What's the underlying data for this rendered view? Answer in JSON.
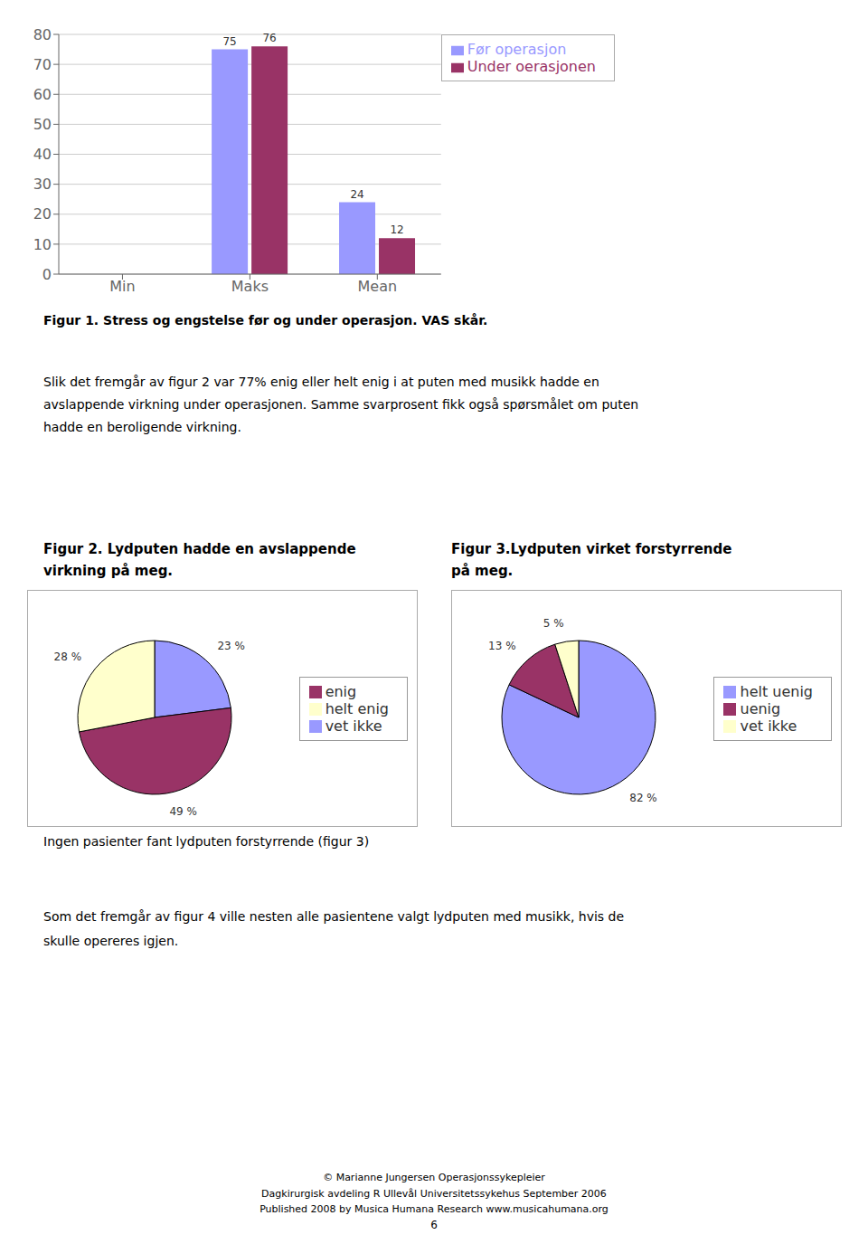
{
  "chart_data": [
    {
      "type": "bar",
      "title": "Figur 1. Stress og engstelse før og under operasjon. VAS skår.",
      "categories": [
        "Min",
        "Maks",
        "Mean"
      ],
      "series": [
        {
          "name": "Før operasjon",
          "color": "#9999ff",
          "values": [
            0,
            75,
            24
          ]
        },
        {
          "name": "Under oerasjonen",
          "color": "#993366",
          "values": [
            0,
            76,
            12
          ]
        }
      ],
      "ylim": [
        0,
        80
      ],
      "yticks": [
        0,
        10,
        20,
        30,
        40,
        50,
        60,
        70,
        80
      ],
      "grid": true,
      "data_labels": true,
      "legend": "upper right"
    },
    {
      "type": "pie",
      "title": "Figur 2. Lydputen hadde en avslappende\nvirkning på meg.",
      "categories": [
        "vet ikke",
        "enig",
        "helt enig"
      ],
      "values": [
        23,
        49,
        28
      ],
      "value_labels": [
        "23 %",
        "49 %",
        "28 %"
      ],
      "colors": [
        "#9999ff",
        "#993366",
        "#ffffcc"
      ],
      "data_labels": true,
      "legend": "right"
    },
    {
      "type": "pie",
      "title": "Figur 3.Lydputen virket forstyrrende\npå meg.",
      "categories": [
        "helt uenig",
        "uenig",
        "vet ikke"
      ],
      "values": [
        82,
        13,
        5
      ],
      "value_labels": [
        "82 %",
        "13 %",
        "5 %"
      ],
      "colors": [
        "#9999ff",
        "#993366",
        "#ffffcc"
      ],
      "data_labels": true,
      "legend": "right"
    }
  ],
  "annotations": [
    "Slik det fremgår av figur 2 var 77% enig eller helt enig i at puten med musikk hadde en\navslappende virkning under operasjonen. Samme svarprosent fikk også spørsmålet om puten\nhadde en beroligende virkning.",
    "Ingen pasienter fant lydputen forstyrrende (figur 3)",
    "Som det fremgår av figur 4 ville nesten alle pasientene valgt lydputen med musikk, hvis de\nskulle opereres igjen.",
    "© Marianne Jungersen  Operasjonssykepleier\nDagkirurgisk avdeling R Ullevål Universitetssykehus September 2006\nPublished 2008 by Musica Humana Research www.musicahumana.org",
    "6"
  ]
}
